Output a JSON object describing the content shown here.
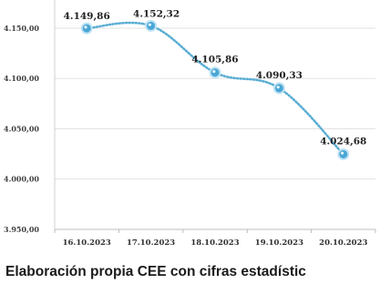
{
  "chart_data": {
    "type": "line",
    "categories": [
      "16.10.2023",
      "17.10.2023",
      "18.10.2023",
      "19.10.2023",
      "20.10.2023"
    ],
    "values": [
      4149.86,
      4152.32,
      4105.86,
      4090.33,
      4024.68
    ],
    "data_labels": [
      "4.149,86",
      "4.152,32",
      "4.105,86",
      "4.090,33",
      "4.024,68"
    ],
    "y_ticks": [
      3950,
      4000,
      4050,
      4100,
      4150
    ],
    "y_tick_labels": [
      "3.950,00",
      "4.000,00",
      "4.050,00",
      "4.100,00",
      "4.150,00"
    ],
    "ylim": [
      3950,
      4178
    ],
    "grid": true,
    "legend": "none",
    "line_style": "dotted-smooth",
    "colors": {
      "line": "#5aaed3",
      "marker_fill": "#4aa6d6",
      "marker_edge": "#bfe3f3",
      "grid": "#e2e2e2"
    }
  },
  "caption": "Elaboración propia CEE con cifras estadístic"
}
